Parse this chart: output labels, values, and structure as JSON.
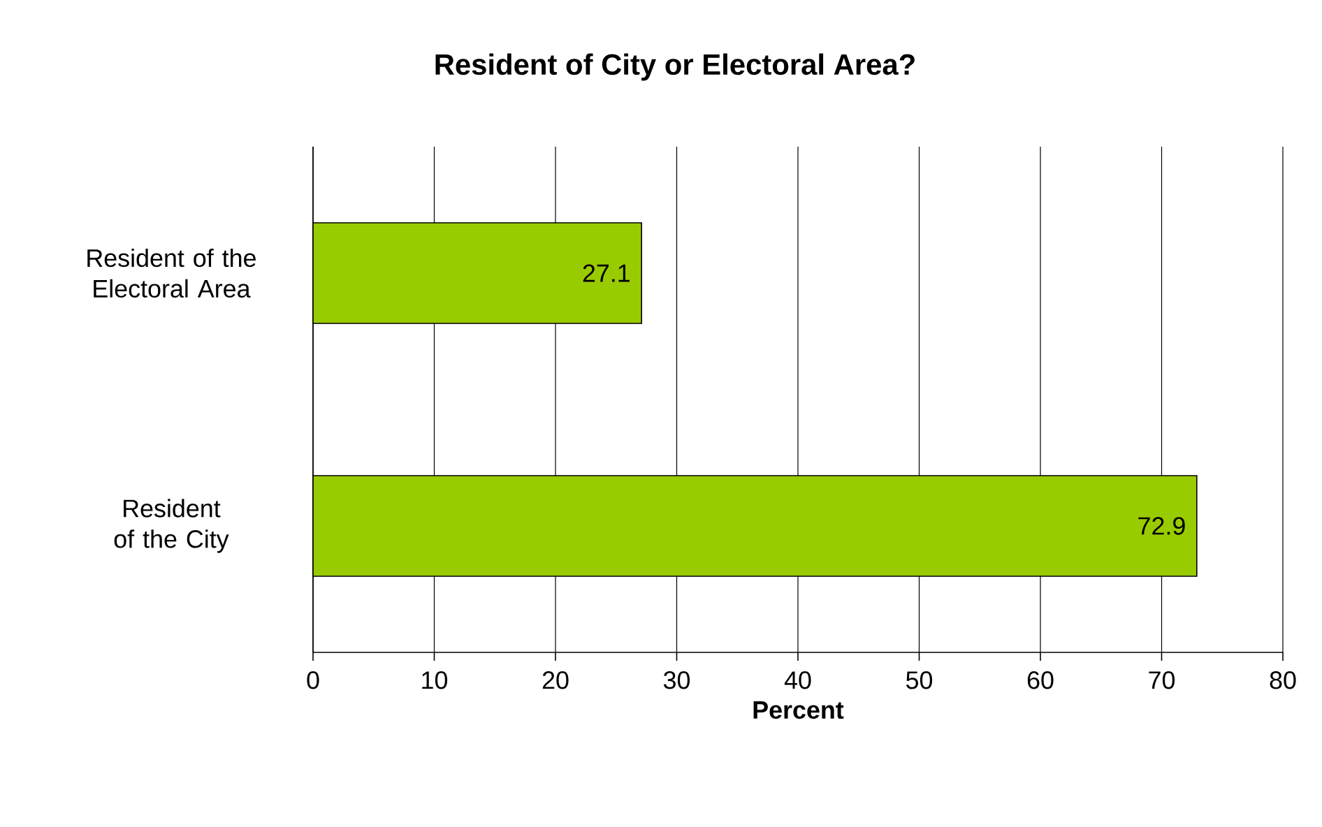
{
  "chart_data": {
    "type": "bar",
    "orientation": "horizontal",
    "title": "Resident of City or Electoral Area?",
    "xlabel": "Percent",
    "categories": [
      "Resident of the Electoral Area",
      "Resident of the City"
    ],
    "values": [
      27.1,
      72.9
    ],
    "color": "#99cc00",
    "xlim": [
      0,
      80
    ],
    "xticks": [
      0,
      10,
      20,
      30,
      40,
      50,
      60,
      70,
      80
    ],
    "grid": "x",
    "data_labels": true
  }
}
